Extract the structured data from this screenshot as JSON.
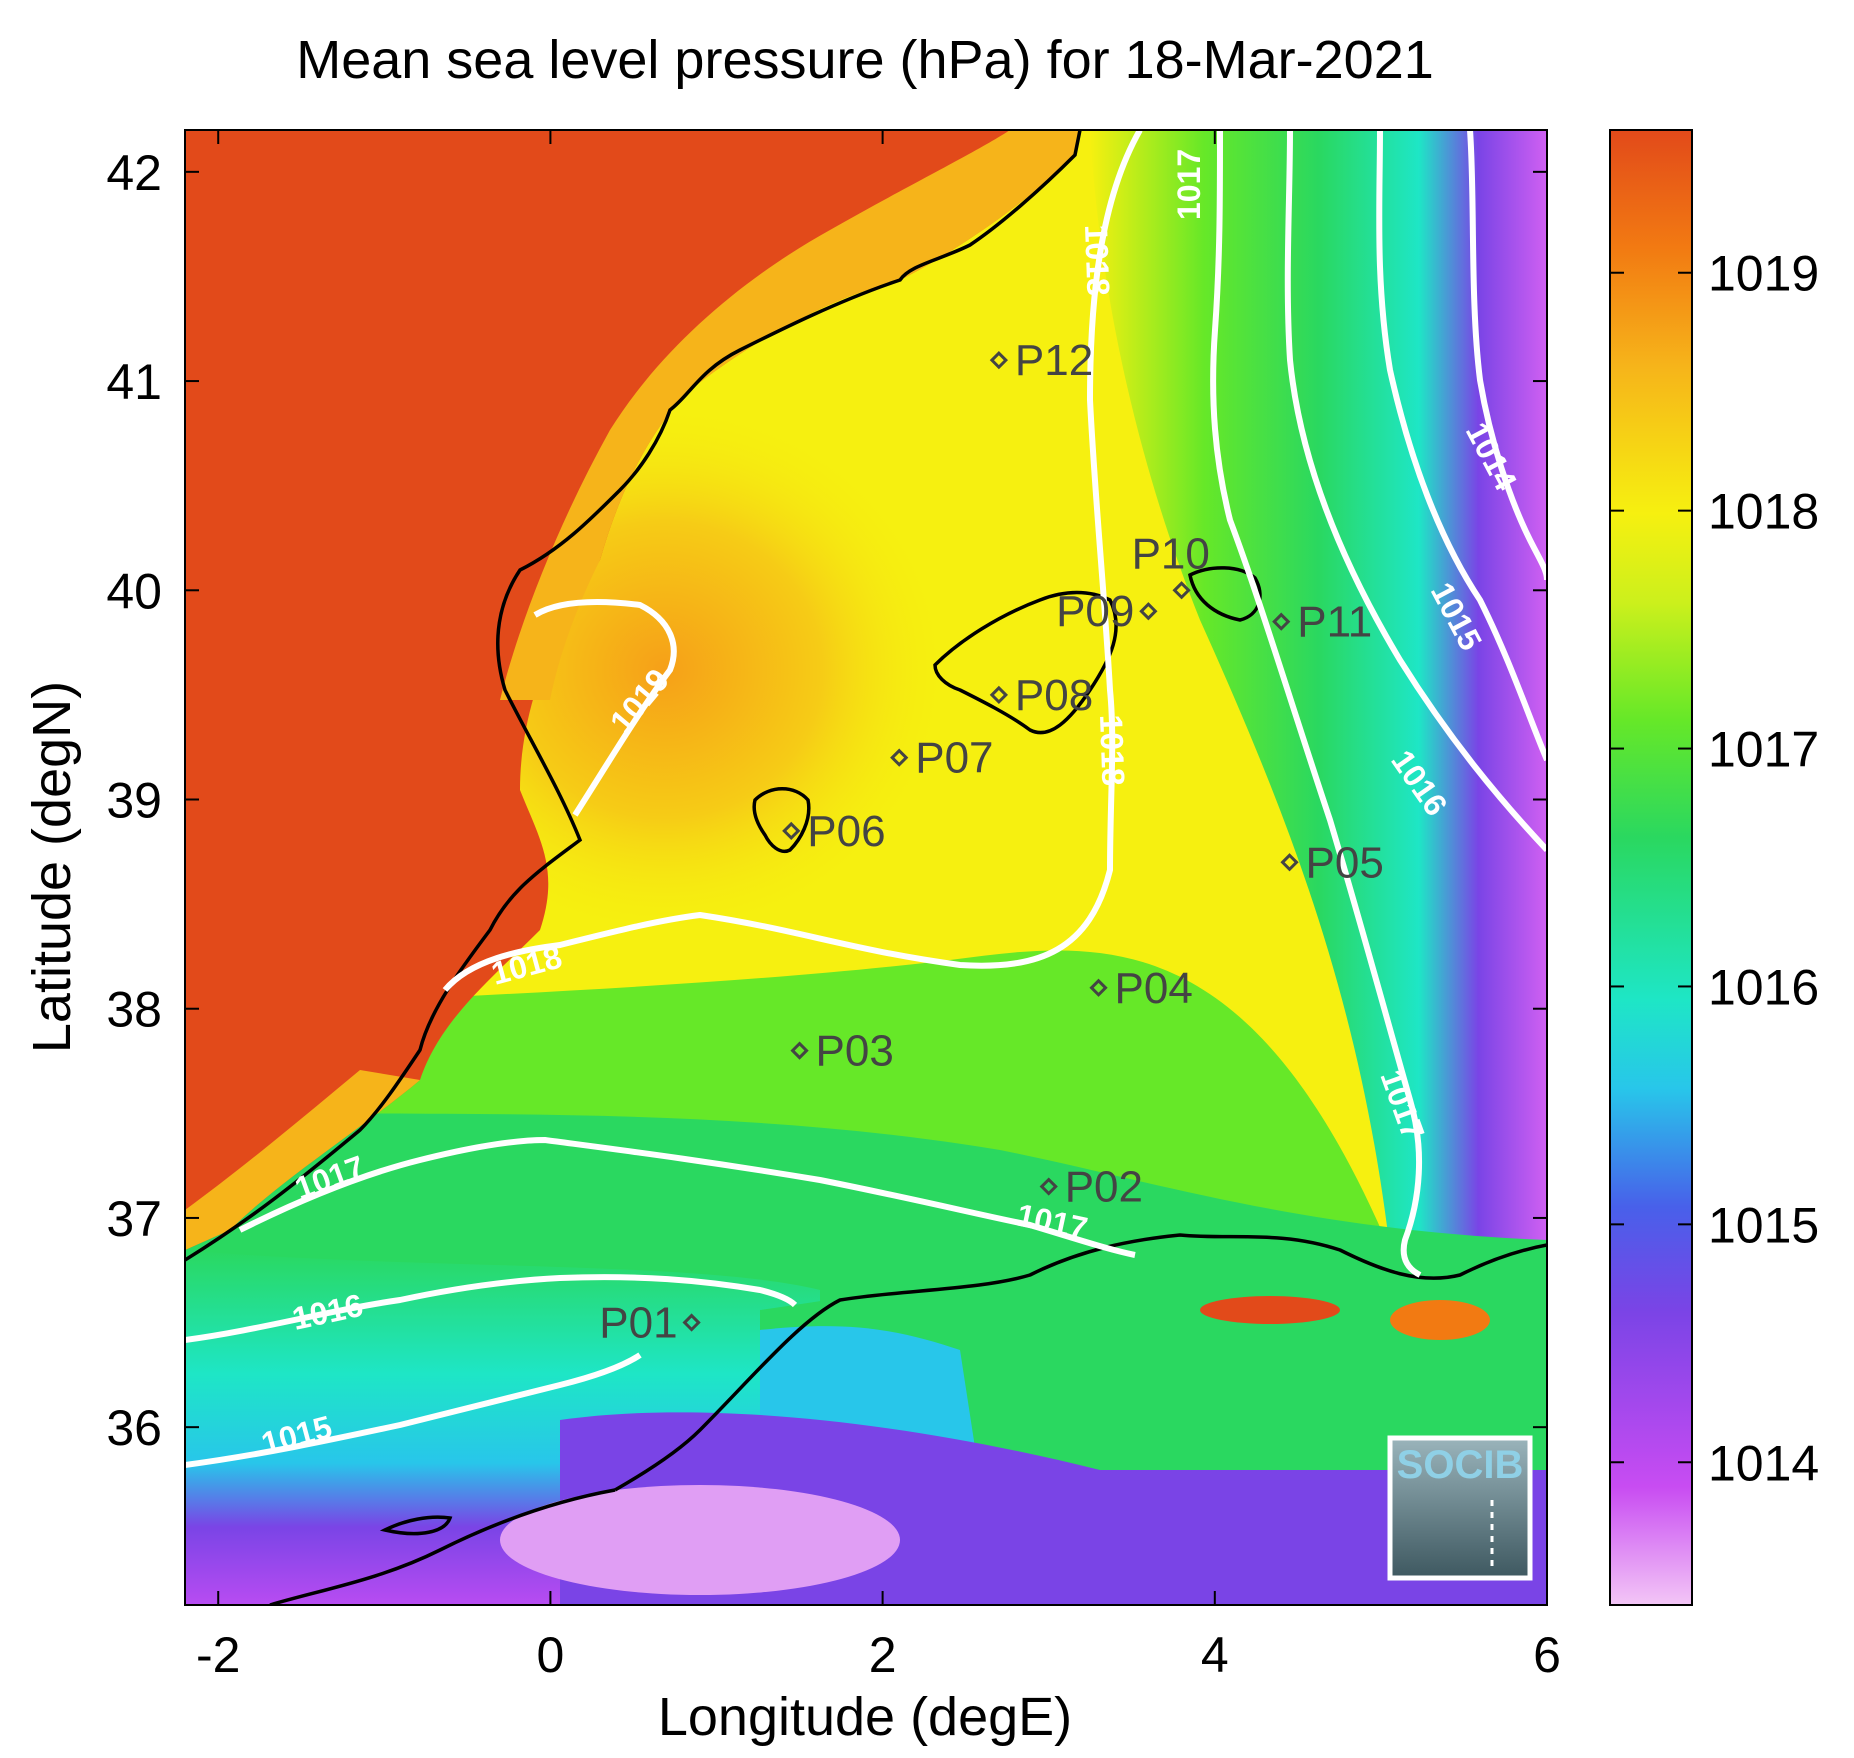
{
  "title": "Mean sea level pressure (hPa) for 18-Mar-2021",
  "xlabel": "Longitude (degE)",
  "ylabel": "Latitude (degN)",
  "x_ticks": [
    "-2",
    "0",
    "2",
    "4",
    "6"
  ],
  "y_ticks": [
    "36",
    "37",
    "38",
    "39",
    "40",
    "41",
    "42"
  ],
  "colorbar": {
    "ticks": [
      "1014",
      "1015",
      "1016",
      "1017",
      "1018",
      "1019"
    ],
    "range": [
      1013.4,
      1019.6
    ],
    "colors": [
      "#f3c6f6",
      "#c84cf2",
      "#7a44e6",
      "#4860ea",
      "#28c6ea",
      "#1ee6c6",
      "#2ad860",
      "#66e828",
      "#ccf01c",
      "#f6f010",
      "#f6b41a",
      "#f27a12",
      "#e24a1a"
    ]
  },
  "points": [
    {
      "label": "P01",
      "lon": 0.85,
      "lat": 36.5
    },
    {
      "label": "P02",
      "lon": 3.0,
      "lat": 37.15
    },
    {
      "label": "P03",
      "lon": 1.5,
      "lat": 37.8
    },
    {
      "label": "P04",
      "lon": 3.3,
      "lat": 38.1
    },
    {
      "label": "P05",
      "lon": 4.45,
      "lat": 38.7
    },
    {
      "label": "P06",
      "lon": 1.45,
      "lat": 38.85
    },
    {
      "label": "P07",
      "lon": 2.1,
      "lat": 39.2
    },
    {
      "label": "P08",
      "lon": 2.7,
      "lat": 39.5
    },
    {
      "label": "P09",
      "lon": 3.6,
      "lat": 39.9
    },
    {
      "label": "P10",
      "lon": 3.8,
      "lat": 40.0
    },
    {
      "label": "P11",
      "lon": 4.4,
      "lat": 39.85
    },
    {
      "label": "P12",
      "lon": 2.7,
      "lat": 41.1
    }
  ],
  "contour_labels": [
    {
      "text": "1019"
    },
    {
      "text": "1018"
    },
    {
      "text": "1018"
    },
    {
      "text": "1018"
    },
    {
      "text": "1017"
    },
    {
      "text": "1017"
    },
    {
      "text": "1017"
    },
    {
      "text": "1017"
    },
    {
      "text": "1016"
    },
    {
      "text": "1016"
    },
    {
      "text": "1015"
    },
    {
      "text": "1015"
    },
    {
      "text": "1014"
    }
  ],
  "logo": "SOCIB"
}
